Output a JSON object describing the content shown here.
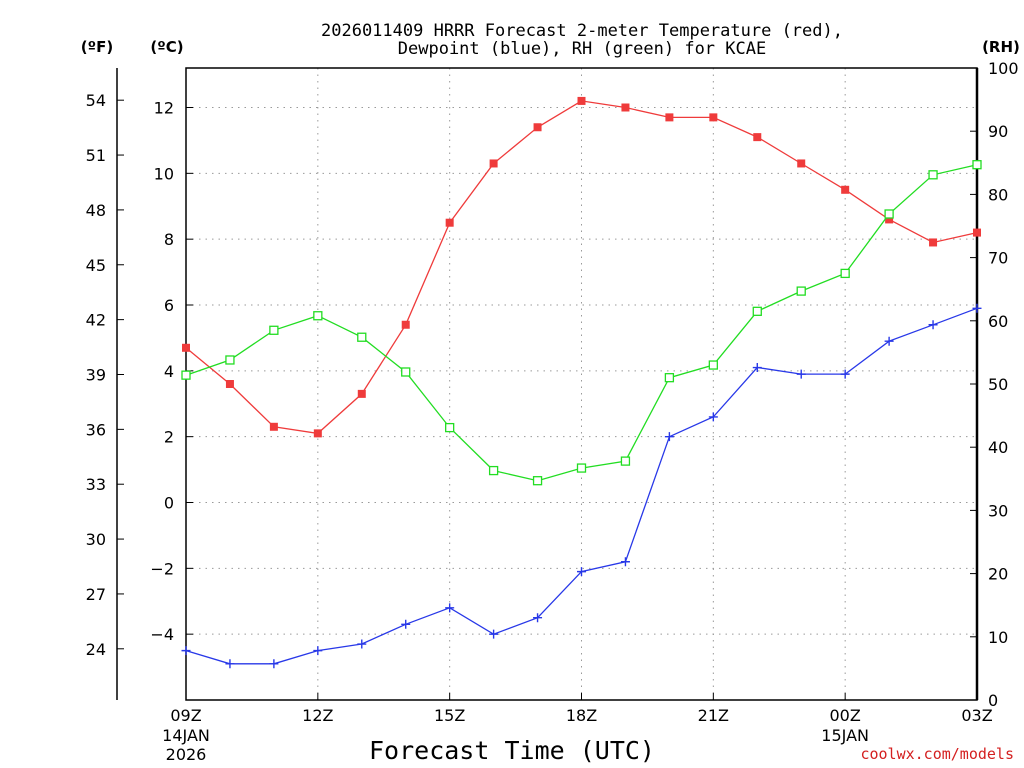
{
  "chart_data": {
    "type": "line",
    "title_lines": [
      "2026011409 HRRR Forecast 2-meter Temperature (red),",
      "Dewpoint (blue), RH (green) for KCAE"
    ],
    "xlabel": "Forecast Time (UTC)",
    "credit": "coolwx.com/models",
    "unit_labels": {
      "fahrenheit": "(ºF)",
      "celsius": "(ºC)",
      "rh": "(RH)"
    },
    "x_range": [
      0,
      18
    ],
    "x_ticks": [
      {
        "x": 0,
        "label": "09Z",
        "sub1": "14JAN",
        "sub2": "2026"
      },
      {
        "x": 3,
        "label": "12Z",
        "sub1": "",
        "sub2": ""
      },
      {
        "x": 6,
        "label": "15Z",
        "sub1": "",
        "sub2": ""
      },
      {
        "x": 9,
        "label": "18Z",
        "sub1": "",
        "sub2": ""
      },
      {
        "x": 12,
        "label": "21Z",
        "sub1": "",
        "sub2": ""
      },
      {
        "x": 15,
        "label": "00Z",
        "sub1": "15JAN",
        "sub2": ""
      },
      {
        "x": 18,
        "label": "03Z",
        "sub1": "",
        "sub2": ""
      }
    ],
    "celsius_axis": {
      "range": [
        -6,
        13.2
      ],
      "ticks": [
        "12",
        "10",
        "8",
        "6",
        "4",
        "2",
        "0",
        "−2",
        "−4"
      ],
      "tick_values": [
        12,
        10,
        8,
        6,
        4,
        2,
        0,
        -2,
        -4
      ]
    },
    "fahrenheit_axis": {
      "range": [
        21.2,
        55.76
      ],
      "ticks": [
        "54",
        "51",
        "48",
        "45",
        "42",
        "39",
        "36",
        "33",
        "30",
        "27",
        "24"
      ],
      "tick_values": [
        54,
        51,
        48,
        45,
        42,
        39,
        36,
        33,
        30,
        27,
        24
      ]
    },
    "rh_axis": {
      "range": [
        0,
        100
      ],
      "ticks": [
        "100",
        "90",
        "80",
        "70",
        "60",
        "50",
        "40",
        "30",
        "20",
        "10",
        "0"
      ],
      "tick_values": [
        100,
        90,
        80,
        70,
        60,
        50,
        40,
        30,
        20,
        10,
        0
      ]
    },
    "series": [
      {
        "name": "2-meter Temperature (°C)",
        "axis": "celsius",
        "color": "#ef3b3b",
        "marker": "filled-square",
        "values": [
          4.7,
          3.6,
          2.3,
          2.1,
          3.3,
          5.4,
          8.5,
          10.3,
          11.4,
          12.2,
          12.0,
          11.7,
          11.7,
          11.1,
          10.3,
          9.5,
          8.6,
          7.9,
          8.2
        ]
      },
      {
        "name": "Dewpoint (°C)",
        "axis": "celsius",
        "color": "#2838e8",
        "marker": "plus",
        "values": [
          -4.5,
          -4.9,
          -4.9,
          -4.5,
          -4.3,
          -3.7,
          -3.2,
          -4.0,
          -3.5,
          -2.1,
          -1.8,
          2.0,
          2.6,
          4.1,
          3.9,
          3.9,
          4.9,
          5.4,
          5.9
        ]
      },
      {
        "name": "RH (%)",
        "axis": "rh",
        "color": "#22dd22",
        "marker": "open-square",
        "values": [
          51.4,
          53.8,
          58.5,
          60.8,
          57.4,
          51.9,
          43.1,
          36.3,
          34.7,
          36.7,
          37.8,
          51.0,
          53.0,
          61.5,
          64.7,
          67.5,
          76.9,
          83.1,
          84.7
        ]
      }
    ],
    "grid": true
  }
}
